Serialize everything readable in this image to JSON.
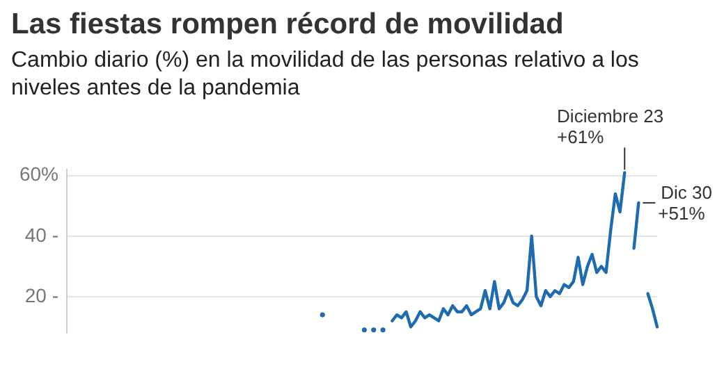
{
  "chart_data": {
    "type": "line",
    "title": "Las fiestas rompen récord de movilidad",
    "subtitle": "Cambio diario (%) en la movilidad de las personas relativo a los niveles antes de la pandemia",
    "categories": [
      null,
      null,
      null,
      null,
      null,
      null,
      null,
      null,
      null,
      null,
      null,
      null,
      null,
      null,
      null,
      null,
      null,
      null,
      null,
      null,
      null,
      null,
      null,
      null,
      null,
      null,
      null,
      null,
      null,
      null,
      null,
      null,
      null,
      null,
      null,
      null,
      null,
      null,
      null,
      null,
      null,
      null,
      null,
      null,
      null,
      null,
      null,
      null,
      null,
      null,
      null,
      null,
      null,
      null,
      null,
      null,
      null,
      null,
      null,
      null,
      null,
      null,
      null,
      null,
      null,
      null,
      null,
      null,
      null,
      null,
      null,
      null,
      null,
      null,
      null,
      null,
      null,
      null,
      null,
      null,
      null,
      null,
      null,
      null,
      null,
      null,
      null,
      null,
      null,
      null,
      null,
      null,
      null,
      null,
      null,
      null,
      null,
      null,
      null,
      null,
      null,
      null,
      null,
      null,
      null,
      null,
      null,
      null,
      null,
      null,
      null,
      null,
      null,
      null,
      null,
      null,
      null,
      null,
      null,
      null,
      null,
      null,
      null,
      null,
      null,
      null,
      null,
      null
    ],
    "series": [
      {
        "color": "#1f6bb0",
        "values": [
          null,
          null,
          null,
          null,
          null,
          null,
          null,
          null,
          null,
          null,
          null,
          null,
          null,
          null,
          null,
          null,
          null,
          null,
          null,
          null,
          null,
          null,
          null,
          null,
          null,
          null,
          null,
          null,
          null,
          null,
          null,
          null,
          null,
          null,
          null,
          null,
          null,
          null,
          null,
          null,
          null,
          null,
          null,
          null,
          null,
          null,
          null,
          null,
          null,
          null,
          null,
          null,
          null,
          null,
          null,
          14,
          null,
          null,
          null,
          null,
          null,
          null,
          null,
          null,
          9,
          null,
          9,
          null,
          9,
          null,
          12,
          14,
          13,
          15,
          10,
          12,
          15,
          13,
          14,
          13,
          12,
          16,
          14,
          17,
          15,
          15,
          17,
          14,
          15,
          16,
          22,
          16,
          25,
          16,
          18,
          22,
          18,
          17,
          19,
          22,
          40,
          20,
          17,
          22,
          20,
          22,
          21,
          24,
          23,
          25,
          33,
          24,
          30,
          34,
          28,
          30,
          28,
          42,
          54,
          48,
          61,
          null,
          36,
          51,
          null,
          21,
          16,
          10
        ]
      }
    ],
    "ylim": [
      8,
      62
    ],
    "yticks": [
      {
        "value": 20,
        "label": "20 -"
      },
      {
        "value": 40,
        "label": "40 -"
      },
      {
        "value": 60,
        "label": "60%"
      }
    ],
    "grid": "y",
    "legend": false,
    "marker": "none",
    "line_style": "solid",
    "annotations": [
      "Diciembre 23\n+61%",
      "Dic 30\n+51%"
    ]
  }
}
